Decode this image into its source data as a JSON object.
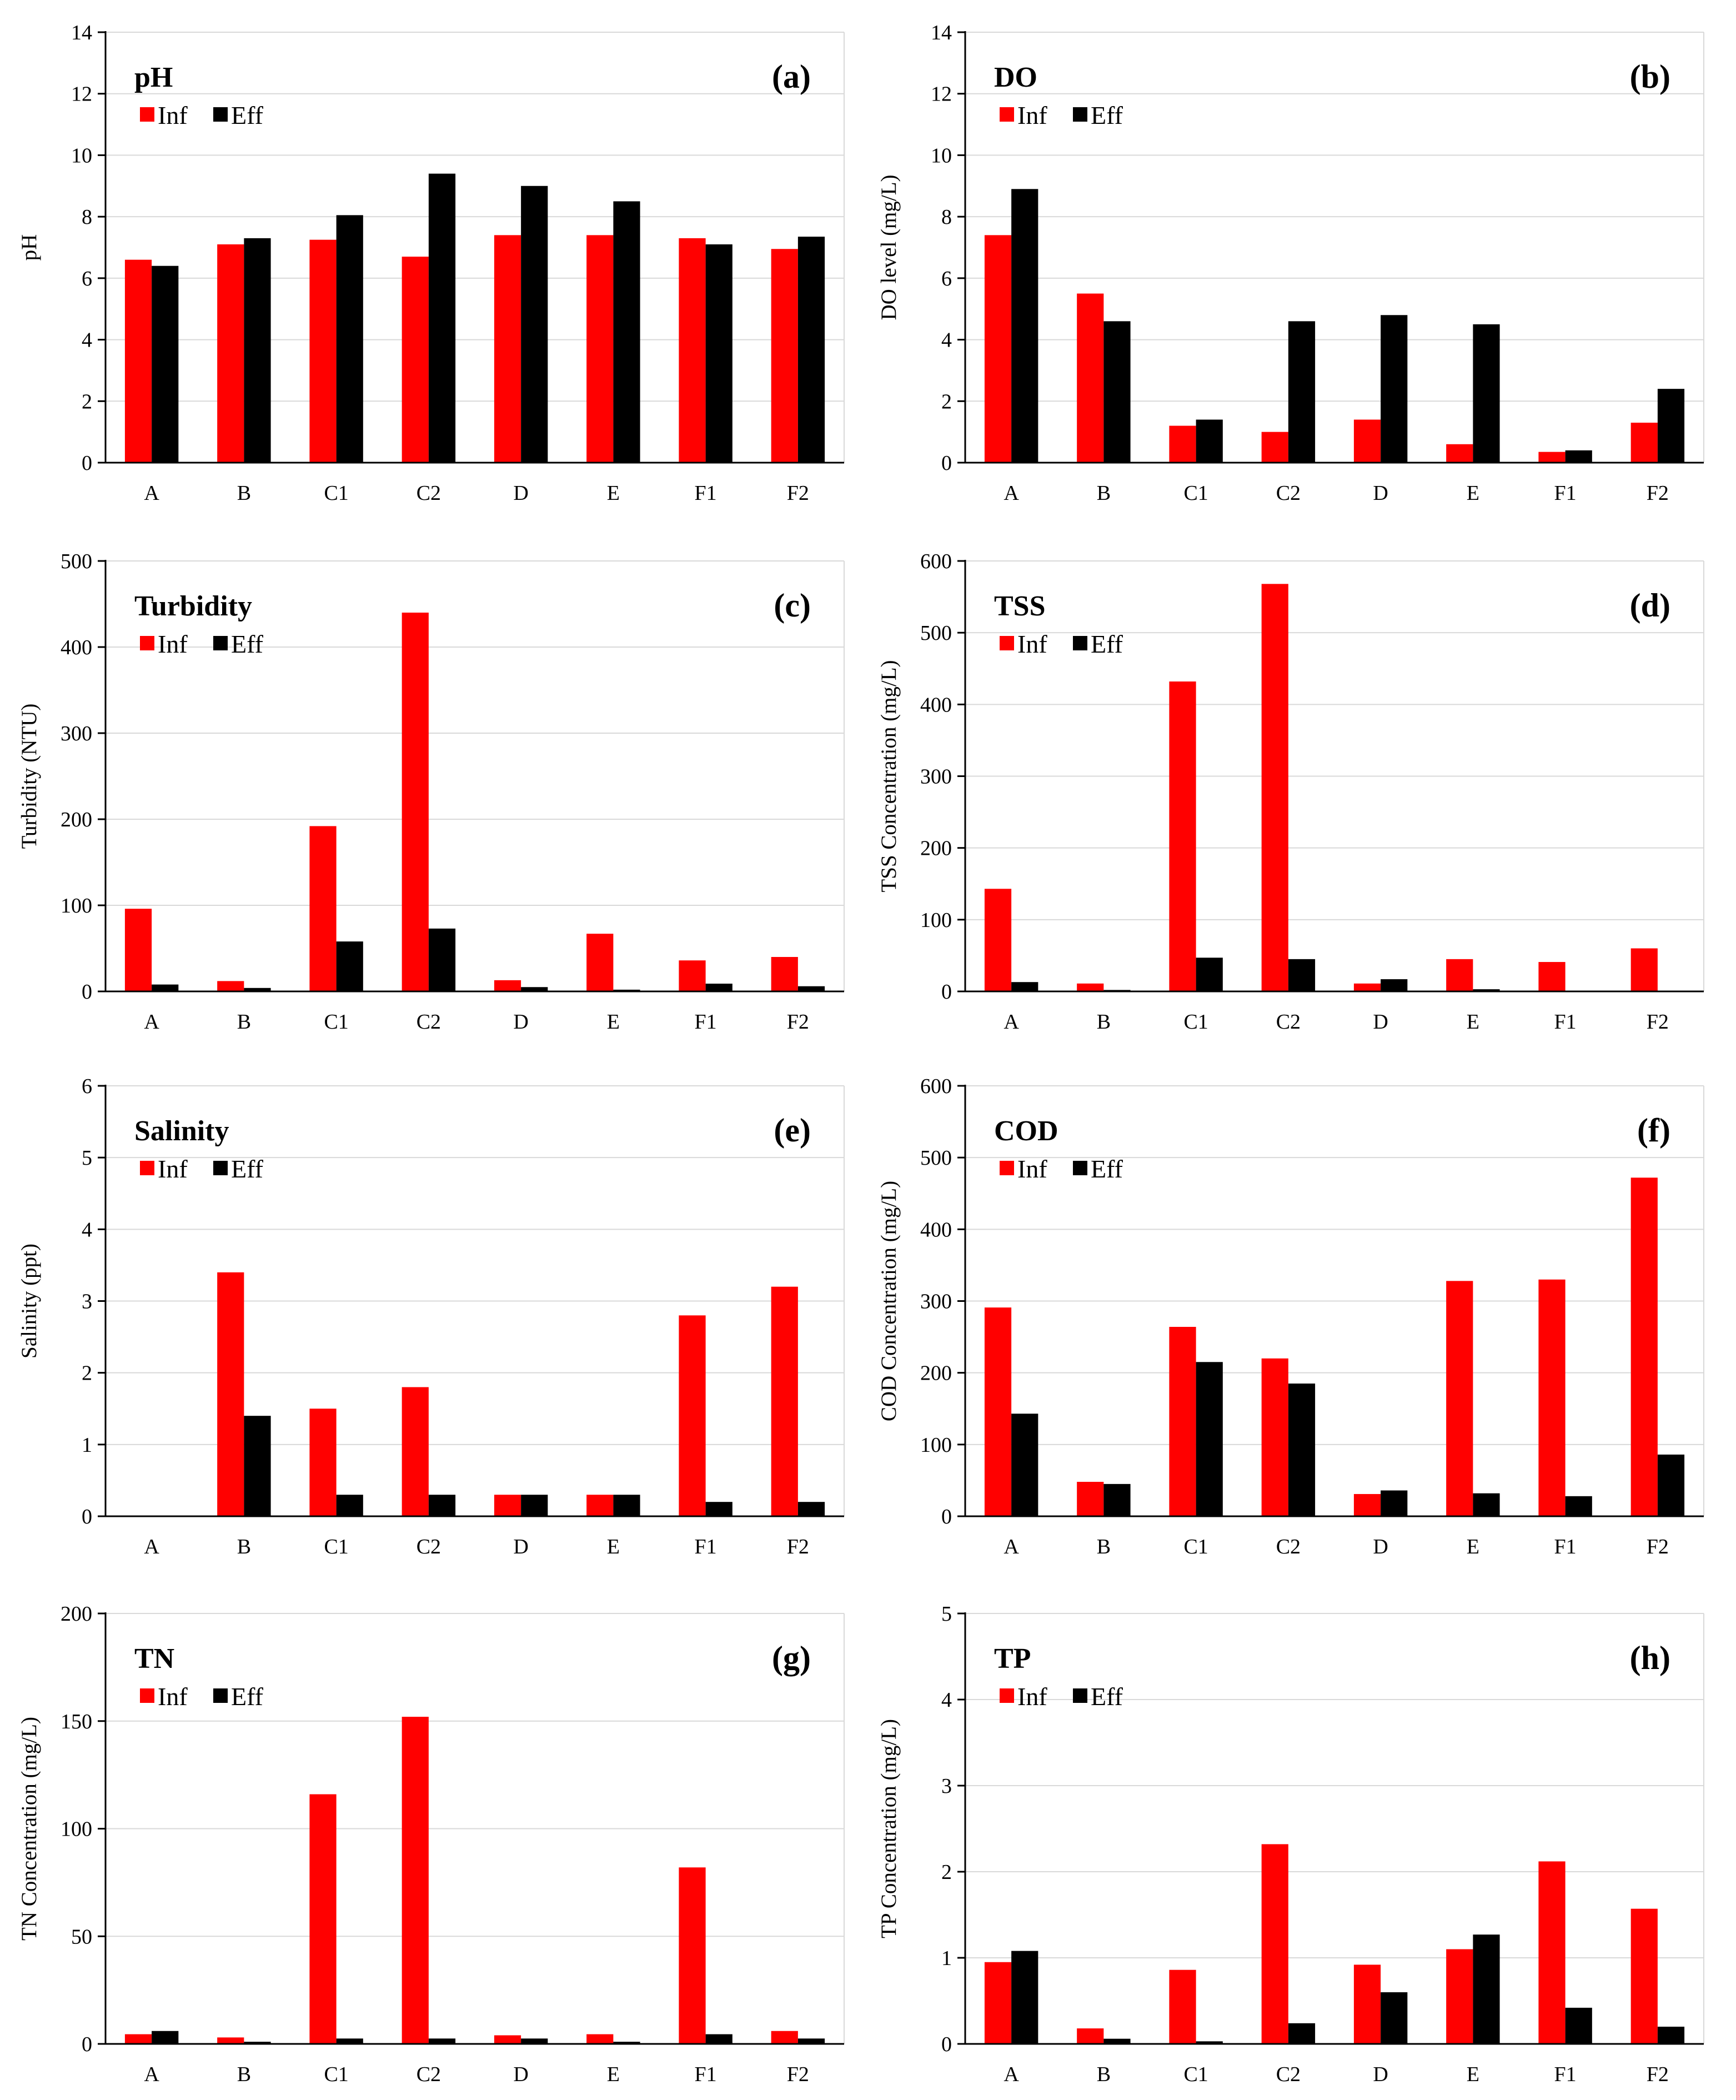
{
  "colors": {
    "inf": "#ff0000",
    "eff": "#000000",
    "grid": "#d9d9d9"
  },
  "chart_data": [
    {
      "id": "a",
      "type": "bar",
      "title": "pH",
      "panel_label": "(a)",
      "ylabel": "pH",
      "ylim": [
        0,
        14
      ],
      "yticks": [
        0,
        2,
        4,
        6,
        8,
        10,
        12,
        14
      ],
      "categories": [
        "A",
        "B",
        "C1",
        "C2",
        "D",
        "E",
        "F1",
        "F2"
      ],
      "legend": [
        "Inf",
        "Eff"
      ],
      "series": [
        {
          "name": "Inf",
          "values": [
            6.6,
            7.1,
            7.25,
            6.7,
            7.4,
            7.4,
            7.3,
            6.95
          ]
        },
        {
          "name": "Eff",
          "values": [
            6.4,
            7.3,
            8.05,
            9.4,
            9.0,
            8.5,
            7.1,
            7.35
          ]
        }
      ]
    },
    {
      "id": "b",
      "type": "bar",
      "title": "DO",
      "panel_label": "(b)",
      "ylabel": "DO level (mg/L)",
      "ylim": [
        0,
        14
      ],
      "yticks": [
        0,
        2,
        4,
        6,
        8,
        10,
        12,
        14
      ],
      "categories": [
        "A",
        "B",
        "C1",
        "C2",
        "D",
        "E",
        "F1",
        "F2"
      ],
      "legend": [
        "Inf",
        "Eff"
      ],
      "series": [
        {
          "name": "Inf",
          "values": [
            7.4,
            5.5,
            1.2,
            1.0,
            1.4,
            0.6,
            0.35,
            1.3
          ]
        },
        {
          "name": "Eff",
          "values": [
            8.9,
            4.6,
            1.4,
            4.6,
            4.8,
            4.5,
            0.4,
            2.4
          ]
        }
      ]
    },
    {
      "id": "c",
      "type": "bar",
      "title": "Turbidity",
      "panel_label": "(c)",
      "ylabel": "Turbidity (NTU)",
      "ylim": [
        0,
        500
      ],
      "yticks": [
        0,
        100,
        200,
        300,
        400,
        500
      ],
      "categories": [
        "A",
        "B",
        "C1",
        "C2",
        "D",
        "E",
        "F1",
        "F2"
      ],
      "legend": [
        "Inf",
        "Eff"
      ],
      "series": [
        {
          "name": "Inf",
          "values": [
            96,
            12,
            192,
            440,
            13,
            67,
            36,
            40
          ]
        },
        {
          "name": "Eff",
          "values": [
            8,
            4,
            58,
            73,
            5,
            2,
            9,
            6
          ]
        }
      ]
    },
    {
      "id": "d",
      "type": "bar",
      "title": "TSS",
      "panel_label": "(d)",
      "ylabel": "TSS Concentration (mg/L)",
      "ylim": [
        0,
        600
      ],
      "yticks": [
        0,
        100,
        200,
        300,
        400,
        500,
        600
      ],
      "categories": [
        "A",
        "B",
        "C1",
        "C2",
        "D",
        "E",
        "F1",
        "F2"
      ],
      "legend": [
        "Inf",
        "Eff"
      ],
      "series": [
        {
          "name": "Inf",
          "values": [
            143,
            11,
            432,
            568,
            11,
            45,
            41,
            60
          ]
        },
        {
          "name": "Eff",
          "values": [
            13,
            2,
            47,
            45,
            17,
            3,
            0,
            0
          ]
        }
      ]
    },
    {
      "id": "e",
      "type": "bar",
      "title": "Salinity",
      "panel_label": "(e)",
      "ylabel": "Salinity (ppt)",
      "ylim": [
        0,
        6
      ],
      "yticks": [
        0,
        1,
        2,
        3,
        4,
        5,
        6
      ],
      "categories": [
        "A",
        "B",
        "C1",
        "C2",
        "D",
        "E",
        "F1",
        "F2"
      ],
      "legend": [
        "Inf",
        "Eff"
      ],
      "series": [
        {
          "name": "Inf",
          "values": [
            0,
            3.4,
            1.5,
            1.8,
            0.3,
            0.3,
            2.8,
            3.2
          ]
        },
        {
          "name": "Eff",
          "values": [
            0,
            1.4,
            0.3,
            0.3,
            0.3,
            0.3,
            0.2,
            0.2
          ]
        }
      ]
    },
    {
      "id": "f",
      "type": "bar",
      "title": "COD",
      "panel_label": "(f)",
      "ylabel": "COD Concentration (mg/L)",
      "ylim": [
        0,
        600
      ],
      "yticks": [
        0,
        100,
        200,
        300,
        400,
        500,
        600
      ],
      "categories": [
        "A",
        "B",
        "C1",
        "C2",
        "D",
        "E",
        "F1",
        "F2"
      ],
      "legend": [
        "Inf",
        "Eff"
      ],
      "series": [
        {
          "name": "Inf",
          "values": [
            291,
            48,
            264,
            220,
            31,
            328,
            330,
            472
          ]
        },
        {
          "name": "Eff",
          "values": [
            143,
            45,
            215,
            185,
            36,
            32,
            28,
            86
          ]
        }
      ]
    },
    {
      "id": "g",
      "type": "bar",
      "title": "TN",
      "panel_label": "(g)",
      "ylabel": "TN Concentration (mg/L)",
      "ylim": [
        0,
        200
      ],
      "yticks": [
        0,
        50,
        100,
        150,
        200
      ],
      "categories": [
        "A",
        "B",
        "C1",
        "C2",
        "D",
        "E",
        "F1",
        "F2"
      ],
      "legend": [
        "Inf",
        "Eff"
      ],
      "series": [
        {
          "name": "Inf",
          "values": [
            4.5,
            3,
            116,
            152,
            4,
            4.5,
            82,
            6
          ]
        },
        {
          "name": "Eff",
          "values": [
            6,
            1,
            2.5,
            2.5,
            2.5,
            1,
            4.5,
            2.5
          ]
        }
      ]
    },
    {
      "id": "h",
      "type": "bar",
      "title": "TP",
      "panel_label": "(h)",
      "ylabel": "TP Concentration (mg/L)",
      "ylim": [
        0,
        5
      ],
      "yticks": [
        0,
        1,
        2,
        3,
        4,
        5
      ],
      "categories": [
        "A",
        "B",
        "C1",
        "C2",
        "D",
        "E",
        "F1",
        "F2"
      ],
      "legend": [
        "Inf",
        "Eff"
      ],
      "series": [
        {
          "name": "Inf",
          "values": [
            0.95,
            0.18,
            0.86,
            2.32,
            0.92,
            1.1,
            2.12,
            1.57
          ]
        },
        {
          "name": "Eff",
          "values": [
            1.08,
            0.06,
            0.03,
            0.24,
            0.6,
            1.27,
            0.42,
            0.2
          ]
        }
      ]
    }
  ]
}
